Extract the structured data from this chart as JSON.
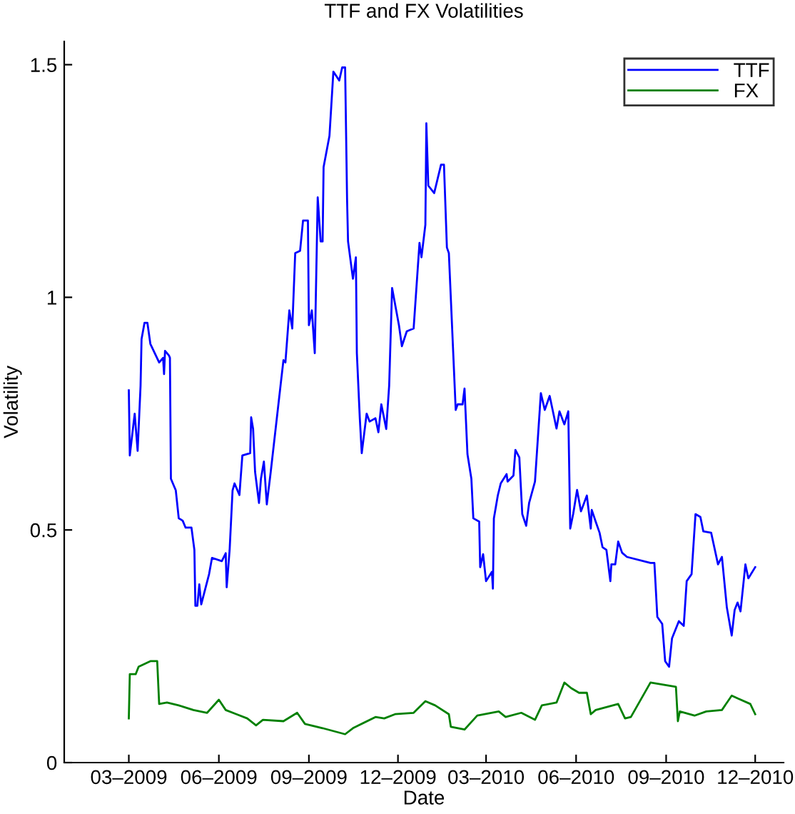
{
  "chart_data": {
    "type": "line",
    "title": "TTF and FX Volatilities",
    "xlabel": "Date",
    "ylabel": "Volatility",
    "xlim": [
      "2008-12-25",
      "2010-12-30"
    ],
    "xticks": [
      {
        "value": "2009-03-01",
        "label": "03–2009"
      },
      {
        "value": "2009-06-01",
        "label": "06–2009"
      },
      {
        "value": "2009-09-01",
        "label": "09–2009"
      },
      {
        "value": "2009-12-01",
        "label": "12–2009"
      },
      {
        "value": "2010-03-01",
        "label": "03–2010"
      },
      {
        "value": "2010-06-01",
        "label": "06–2010"
      },
      {
        "value": "2010-09-01",
        "label": "09–2010"
      },
      {
        "value": "2010-12-01",
        "label": "12–2010"
      }
    ],
    "ylim": [
      0,
      1.55
    ],
    "yticks": [
      0,
      0.5,
      1,
      1.5
    ],
    "grid": false,
    "legend": "top right",
    "marker": "none",
    "line_style": "solid",
    "series": [
      {
        "name": "TTF",
        "color": "#0000ff",
        "x": [
          "2009-03-01",
          "2009-03-02",
          "2009-03-07",
          "2009-03-10",
          "2009-03-13",
          "2009-03-14",
          "2009-03-17",
          "2009-03-20",
          "2009-03-23",
          "2009-04-01",
          "2009-04-05",
          "2009-04-06",
          "2009-04-07",
          "2009-04-11",
          "2009-04-12",
          "2009-04-13",
          "2009-04-18",
          "2009-04-21",
          "2009-04-25",
          "2009-04-28",
          "2009-05-04",
          "2009-05-07",
          "2009-05-08",
          "2009-05-10",
          "2009-05-12",
          "2009-05-14",
          "2009-05-22",
          "2009-05-25",
          "2009-06-04",
          "2009-06-08",
          "2009-06-09",
          "2009-06-12",
          "2009-06-15",
          "2009-06-17",
          "2009-06-22",
          "2009-06-25",
          "2009-07-03",
          "2009-07-04",
          "2009-07-06",
          "2009-07-08",
          "2009-07-12",
          "2009-07-14",
          "2009-07-17",
          "2009-07-20",
          "2009-07-24",
          "2009-08-03",
          "2009-08-06",
          "2009-08-08",
          "2009-08-12",
          "2009-08-15",
          "2009-08-18",
          "2009-08-23",
          "2009-08-26",
          "2009-08-31",
          "2009-09-01",
          "2009-09-04",
          "2009-09-07",
          "2009-09-10",
          "2009-09-13",
          "2009-09-15",
          "2009-09-16",
          "2009-09-22",
          "2009-09-26",
          "2009-10-02",
          "2009-10-05",
          "2009-10-08",
          "2009-10-10",
          "2009-10-11",
          "2009-10-16",
          "2009-10-19",
          "2009-10-20",
          "2009-10-23",
          "2009-10-25",
          "2009-10-30",
          "2009-11-02",
          "2009-11-08",
          "2009-11-11",
          "2009-11-14",
          "2009-11-19",
          "2009-11-22",
          "2009-11-25",
          "2009-12-02",
          "2009-12-05",
          "2009-12-10",
          "2009-12-17",
          "2009-12-23",
          "2009-12-25",
          "2009-12-29",
          "2009-12-30",
          "2010-01-01",
          "2010-01-07",
          "2010-01-14",
          "2010-01-17",
          "2010-01-20",
          "2010-01-22",
          "2010-01-29",
          "2010-01-31",
          "2010-02-05",
          "2010-02-07",
          "2010-02-10",
          "2010-02-14",
          "2010-02-16",
          "2010-02-22",
          "2010-02-23",
          "2010-02-26",
          "2010-03-01",
          "2010-03-07",
          "2010-03-08",
          "2010-03-09",
          "2010-03-13",
          "2010-03-16",
          "2010-03-22",
          "2010-03-23",
          "2010-03-29",
          "2010-03-31",
          "2010-04-04",
          "2010-04-07",
          "2010-04-11",
          "2010-04-14",
          "2010-04-20",
          "2010-04-26",
          "2010-04-30",
          "2010-05-05",
          "2010-05-08",
          "2010-05-12",
          "2010-05-15",
          "2010-05-20",
          "2010-05-24",
          "2010-05-26",
          "2010-05-29",
          "2010-06-02",
          "2010-06-06",
          "2010-06-12",
          "2010-06-16",
          "2010-06-17",
          "2010-06-21",
          "2010-06-25",
          "2010-06-28",
          "2010-07-02",
          "2010-07-06",
          "2010-07-07",
          "2010-07-11",
          "2010-07-14",
          "2010-07-18",
          "2010-07-23",
          "2010-08-16",
          "2010-08-20",
          "2010-08-23",
          "2010-08-28",
          "2010-08-31",
          "2010-09-04",
          "2010-09-07",
          "2010-09-14",
          "2010-09-19",
          "2010-09-22",
          "2010-09-27",
          "2010-10-01",
          "2010-10-06",
          "2010-10-09",
          "2010-10-17",
          "2010-10-24",
          "2010-10-28",
          "2010-11-02",
          "2010-11-07",
          "2010-11-10",
          "2010-11-13",
          "2010-11-16",
          "2010-11-21",
          "2010-11-24",
          "2010-12-01"
        ],
        "values": [
          0.8,
          0.66,
          0.75,
          0.67,
          0.81,
          0.91,
          0.945,
          0.945,
          0.9,
          0.86,
          0.87,
          0.835,
          0.885,
          0.875,
          0.87,
          0.61,
          0.585,
          0.525,
          0.52,
          0.505,
          0.505,
          0.457,
          0.337,
          0.337,
          0.383,
          0.34,
          0.405,
          0.44,
          0.433,
          0.45,
          0.377,
          0.457,
          0.585,
          0.6,
          0.575,
          0.66,
          0.665,
          0.742,
          0.717,
          0.625,
          0.558,
          0.61,
          0.647,
          0.555,
          0.625,
          0.81,
          0.865,
          0.86,
          0.972,
          0.933,
          1.095,
          1.1,
          1.165,
          1.165,
          0.94,
          0.972,
          0.88,
          1.215,
          1.12,
          1.12,
          1.28,
          1.347,
          1.485,
          1.466,
          1.494,
          1.494,
          1.21,
          1.12,
          1.04,
          1.086,
          0.88,
          0.74,
          0.665,
          0.75,
          0.733,
          0.74,
          0.71,
          0.77,
          0.717,
          0.81,
          1.02,
          0.94,
          0.895,
          0.927,
          0.933,
          1.117,
          1.086,
          1.156,
          1.374,
          1.24,
          1.224,
          1.285,
          1.285,
          1.107,
          1.095,
          0.758,
          0.77,
          0.77,
          0.804,
          0.663,
          0.61,
          0.525,
          0.518,
          0.42,
          0.448,
          0.39,
          0.41,
          0.374,
          0.525,
          0.574,
          0.6,
          0.62,
          0.604,
          0.617,
          0.672,
          0.656,
          0.534,
          0.509,
          0.558,
          0.604,
          0.794,
          0.758,
          0.788,
          0.758,
          0.718,
          0.755,
          0.727,
          0.755,
          0.503,
          0.534,
          0.586,
          0.54,
          0.574,
          0.503,
          0.543,
          0.518,
          0.494,
          0.463,
          0.457,
          0.39,
          0.426,
          0.426,
          0.475,
          0.451,
          0.442,
          0.429,
          0.429,
          0.313,
          0.298,
          0.218,
          0.206,
          0.267,
          0.304,
          0.294,
          0.39,
          0.405,
          0.534,
          0.528,
          0.497,
          0.494,
          0.426,
          0.442,
          0.334,
          0.273,
          0.328,
          0.344,
          0.325,
          0.426,
          0.396,
          0.42
        ]
      },
      {
        "name": "FX",
        "color": "#008000",
        "x": [
          "2009-03-01",
          "2009-03-02",
          "2009-03-08",
          "2009-03-11",
          "2009-03-23",
          "2009-03-30",
          "2009-04-01",
          "2009-04-09",
          "2009-04-21",
          "2009-05-06",
          "2009-05-20",
          "2009-06-01",
          "2009-06-08",
          "2009-06-19",
          "2009-06-30",
          "2009-07-09",
          "2009-07-16",
          "2009-08-06",
          "2009-08-20",
          "2009-08-28",
          "2009-09-15",
          "2009-10-08",
          "2009-10-16",
          "2009-11-08",
          "2009-11-17",
          "2009-11-28",
          "2009-12-17",
          "2009-12-29",
          "2010-01-08",
          "2010-01-22",
          "2010-01-24",
          "2010-02-07",
          "2010-02-20",
          "2010-03-14",
          "2010-03-21",
          "2010-04-06",
          "2010-04-20",
          "2010-04-27",
          "2010-05-12",
          "2010-05-20",
          "2010-05-27",
          "2010-06-04",
          "2010-06-12",
          "2010-06-16",
          "2010-06-21",
          "2010-07-14",
          "2010-07-21",
          "2010-07-27",
          "2010-08-16",
          "2010-09-11",
          "2010-09-13",
          "2010-09-15",
          "2010-09-30",
          "2010-10-12",
          "2010-10-28",
          "2010-11-07",
          "2010-11-13",
          "2010-11-26",
          "2010-12-01"
        ],
        "values": [
          0.095,
          0.19,
          0.19,
          0.206,
          0.218,
          0.218,
          0.126,
          0.129,
          0.123,
          0.113,
          0.107,
          0.135,
          0.113,
          0.104,
          0.095,
          0.08,
          0.092,
          0.089,
          0.107,
          0.083,
          0.074,
          0.061,
          0.074,
          0.098,
          0.095,
          0.104,
          0.107,
          0.132,
          0.123,
          0.104,
          0.077,
          0.071,
          0.101,
          0.11,
          0.098,
          0.107,
          0.092,
          0.123,
          0.129,
          0.172,
          0.16,
          0.15,
          0.15,
          0.104,
          0.113,
          0.126,
          0.095,
          0.098,
          0.172,
          0.163,
          0.089,
          0.11,
          0.101,
          0.11,
          0.113,
          0.144,
          0.138,
          0.126,
          0.104
        ]
      }
    ]
  }
}
